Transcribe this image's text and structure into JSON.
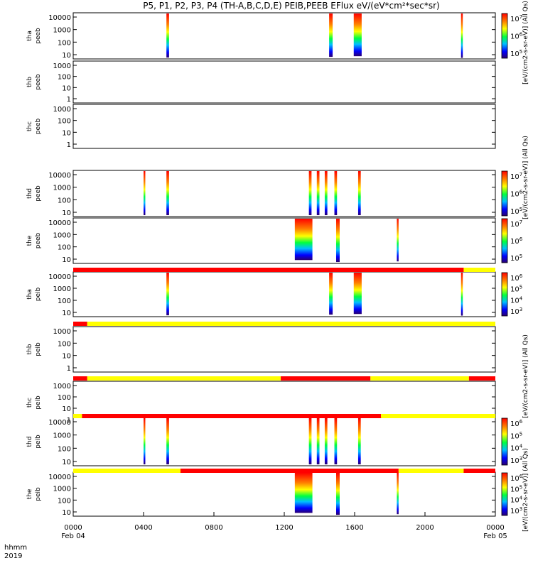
{
  "title": "P5, P1, P2, P3, P4 (TH-A,B,C,D,E) PEIB,PEEB EFlux eV/(eV*cm²*sec*sr)",
  "x_axis": {
    "corner_line1": "hhmm",
    "corner_line2": "2019",
    "ticks": [
      "0000",
      "0400",
      "0800",
      "1200",
      "1600",
      "2000",
      "0000"
    ],
    "dates": [
      "Feb 04",
      "Feb 05"
    ]
  },
  "colorbar_labels": {
    "electron_top": "[eV/(cm2-s-sr-eV)] (All Qs)",
    "electron_mid": "[eV/(cm2-s-sr-eV)] (All Qs)",
    "ion_mid": "[eV/(cm2-s-sr-eV)] (All Qs)",
    "ion_bottom": "[eV/(cm2-s-sr-eV)] (All Qs)"
  },
  "colors": {
    "bar_red": "#ff0000",
    "bar_yellow": "#ffff00"
  },
  "chart_data": {
    "type": "heatmap",
    "x_range_hours": [
      0,
      24
    ],
    "panels": [
      {
        "id": "tha_peeb",
        "label1": "tha",
        "label2": "peeb",
        "yticks": [
          "10",
          "100",
          "1000",
          "10000"
        ],
        "log_y": true,
        "colorbar": {
          "ticks": [
            "10^5",
            "10^6",
            "10^7"
          ]
        },
        "bursts": [
          [
            5.3,
            5.45,
            10
          ],
          [
            14.55,
            14.75,
            20
          ],
          [
            15.95,
            16.4,
            30
          ],
          [
            22.05,
            22.15,
            5
          ]
        ]
      },
      {
        "id": "thb_peeb",
        "label1": "thb",
        "label2": "peeb",
        "yticks": [
          "1",
          "10",
          "100",
          "1000"
        ],
        "log_y": true,
        "bursts": []
      },
      {
        "id": "thc_peeb",
        "label1": "thc",
        "label2": "peeb",
        "yticks": [
          "1",
          "10",
          "100",
          "1000"
        ],
        "log_y": true,
        "bursts": []
      },
      {
        "id": "thd_peeb",
        "label1": "thd",
        "label2": "peeb",
        "yticks": [
          "10",
          "100",
          "1000",
          "10000"
        ],
        "log_y": true,
        "colorbar": {
          "ticks": [
            "10^5",
            "10^6",
            "10^7"
          ]
        },
        "bursts": [
          [
            4.0,
            4.1,
            10
          ],
          [
            5.3,
            5.45,
            10
          ],
          [
            13.4,
            13.55,
            10
          ],
          [
            13.85,
            14.0,
            10
          ],
          [
            14.3,
            14.45,
            10
          ],
          [
            14.85,
            15.0,
            10
          ],
          [
            16.2,
            16.35,
            10
          ]
        ]
      },
      {
        "id": "the_peeb",
        "label1": "the",
        "label2": "peeb",
        "yticks": [
          "10",
          "100",
          "1000",
          "10000"
        ],
        "log_y": true,
        "colorbar": {
          "ticks": [
            "10^5",
            "10^6",
            "10^7"
          ]
        },
        "bursts": [
          [
            12.6,
            13.6,
            40
          ],
          [
            14.95,
            15.15,
            10
          ],
          [
            18.4,
            18.5,
            20
          ]
        ]
      },
      {
        "id": "tha_peib",
        "label1": "tha",
        "label2": "peib",
        "yticks": [
          "10",
          "100",
          "1000",
          "10000"
        ],
        "log_y": true,
        "colorbar": {
          "ticks": [
            "10^3",
            "10^4",
            "10^5",
            "10^6"
          ]
        },
        "bursts": [
          [
            5.3,
            5.45,
            10
          ],
          [
            14.55,
            14.75,
            20
          ],
          [
            15.95,
            16.4,
            30
          ],
          [
            22.05,
            22.15,
            5
          ]
        ]
      },
      {
        "id": "thb_peib",
        "label1": "thb",
        "label2": "peib",
        "yticks": [
          "1",
          "10",
          "100",
          "1000"
        ],
        "log_y": true,
        "bursts": []
      },
      {
        "id": "thc_peib",
        "label1": "thc",
        "label2": "peib",
        "yticks": [
          "1",
          "10",
          "100",
          "1000"
        ],
        "log_y": true,
        "bursts": []
      },
      {
        "id": "thd_peib",
        "label1": "thd",
        "label2": "peib",
        "yticks": [
          "10",
          "100",
          "1000",
          "10000"
        ],
        "log_y": true,
        "colorbar": {
          "ticks": [
            "10^3",
            "10^4",
            "10^5",
            "10^6"
          ]
        },
        "bursts": [
          [
            4.0,
            4.1,
            10
          ],
          [
            5.3,
            5.45,
            10
          ],
          [
            13.4,
            13.55,
            10
          ],
          [
            13.85,
            14.0,
            10
          ],
          [
            14.3,
            14.45,
            10
          ],
          [
            14.85,
            15.0,
            10
          ],
          [
            16.2,
            16.35,
            10
          ]
        ]
      },
      {
        "id": "the_peib",
        "label1": "the",
        "label2": "peib",
        "yticks": [
          "10",
          "100",
          "1000",
          "10000"
        ],
        "log_y": true,
        "colorbar": {
          "ticks": [
            "10^3",
            "10^4",
            "10^5",
            "10^6"
          ]
        },
        "bursts": [
          [
            12.6,
            13.6,
            40
          ],
          [
            14.95,
            15.15,
            10
          ],
          [
            18.4,
            18.5,
            20
          ]
        ]
      }
    ],
    "status_bars": [
      {
        "after_panel": 4,
        "segments": [
          [
            "red",
            0,
            22.2
          ],
          [
            "yellow",
            22.2,
            24
          ]
        ]
      },
      {
        "after_panel": 5,
        "segments": [
          [
            "red",
            0,
            0.8
          ],
          [
            "yellow",
            0.8,
            24
          ]
        ]
      },
      {
        "after_panel": 6,
        "segments": [
          [
            "red",
            0,
            0.8
          ],
          [
            "yellow",
            0.8,
            11.8
          ],
          [
            "red",
            11.8,
            16.9
          ],
          [
            "yellow",
            16.9,
            22.5
          ],
          [
            "red",
            22.5,
            24
          ]
        ]
      },
      {
        "after_panel": 7,
        "segments": [
          [
            "yellow",
            0,
            0.5
          ],
          [
            "red",
            0.5,
            17.5
          ],
          [
            "yellow",
            17.5,
            24
          ]
        ]
      },
      {
        "after_panel": 8,
        "segments": [
          [
            "yellow",
            0,
            6.1
          ],
          [
            "red",
            6.1,
            18.5
          ],
          [
            "yellow",
            18.5,
            22.2
          ],
          [
            "red",
            22.2,
            24
          ]
        ]
      }
    ]
  }
}
